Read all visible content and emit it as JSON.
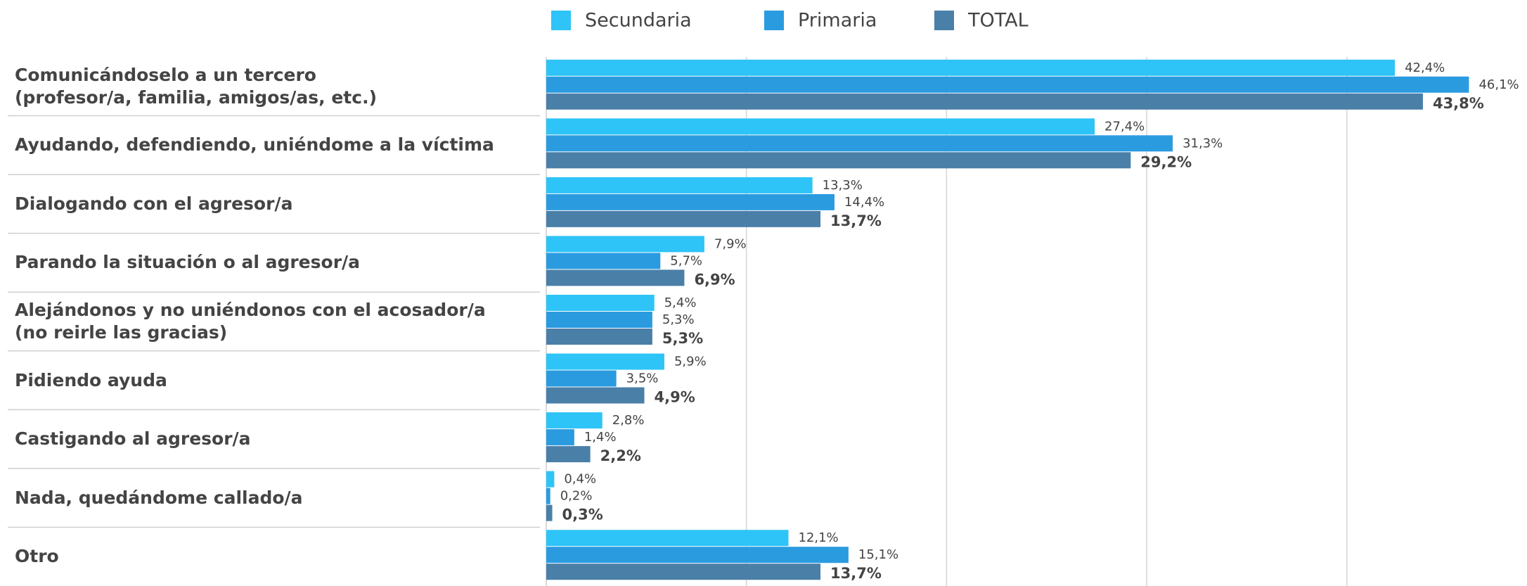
{
  "chart_data": {
    "type": "hbar",
    "categories": [
      "Comunicándoselo  a un tercero\n(profesor/a, familia, amigos/as, etc.)",
      "Ayudando, defendiendo, uniéndome a la víctima",
      "Dialogando con el agresor/a",
      "Parando la situación o al agresor/a",
      "Alejándonos y no uniéndonos con el acosador/a\n(no reirle las gracias)",
      "Pidiendo ayuda",
      "Castigando al agresor/a",
      "Nada, quedándome callado/a",
      "Otro"
    ],
    "series": [
      {
        "name": "Secundaria",
        "color": "#2ec4f7",
        "values": [
          42.4,
          27.4,
          13.3,
          7.9,
          5.4,
          5.9,
          2.8,
          0.4,
          12.1
        ],
        "value_labels": [
          "42,4%",
          "27,4%",
          "13,3%",
          "7,9%",
          "5,4%",
          "5,9%",
          "2,8%",
          "0,4%",
          "12,1%"
        ]
      },
      {
        "name": "Primaria",
        "color": "#2b9be0",
        "values": [
          46.1,
          31.3,
          14.4,
          5.7,
          5.3,
          3.5,
          1.4,
          0.2,
          15.1
        ],
        "value_labels": [
          "46,1%",
          "31,3%",
          "14,4%",
          "5,7%",
          "5,3%",
          "3,5%",
          "1,4%",
          "0,2%",
          "15,1%"
        ]
      },
      {
        "name": "TOTAL",
        "color": "#4a7fa8",
        "values": [
          43.8,
          29.2,
          13.7,
          6.9,
          5.3,
          4.9,
          2.2,
          0.3,
          13.7
        ],
        "value_labels": [
          "43,8%",
          "29,2%",
          "13,7%",
          "6,9%",
          "5,3%",
          "4,9%",
          "2,2%",
          "0,3%",
          "13,7%"
        ]
      }
    ],
    "xlim": [
      0,
      49
    ],
    "xticks": [
      0,
      10,
      20,
      30,
      40
    ],
    "grid": true,
    "legend": "top"
  }
}
